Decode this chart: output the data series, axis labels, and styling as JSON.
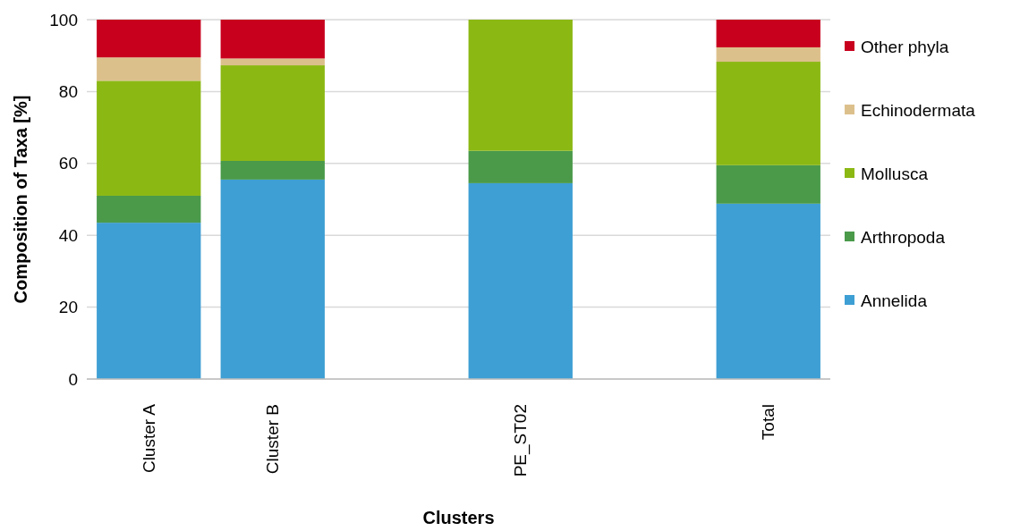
{
  "chart_data": {
    "type": "bar",
    "stacked": true,
    "xlabel": "Clusters",
    "ylabel": "Composition of Taxa [%]",
    "categories": [
      "Cluster A",
      "Cluster B",
      null,
      "PE_ST02",
      null,
      "Total"
    ],
    "ylim": [
      0,
      100
    ],
    "yticks": [
      0,
      20,
      40,
      60,
      80,
      100
    ],
    "grid": "y",
    "legend": "right",
    "series": [
      {
        "name": "Annelida",
        "color": "#3e9fd4",
        "values": [
          43.5,
          55.5,
          null,
          54.5,
          null,
          48.8
        ]
      },
      {
        "name": "Arthropoda",
        "color": "#4a9a4a",
        "values": [
          7.5,
          5.2,
          null,
          9,
          null,
          10.7
        ]
      },
      {
        "name": "Mollusca",
        "color": "#8cb814",
        "values": [
          32,
          26.6,
          null,
          36.5,
          null,
          28.8
        ]
      },
      {
        "name": "Echinodermata",
        "color": "#dcc08c",
        "values": [
          6.5,
          1.9,
          null,
          0,
          null,
          4
        ]
      },
      {
        "name": "Other phyla",
        "color": "#c8001e",
        "values": [
          10.5,
          10.8,
          null,
          0,
          null,
          7.7
        ]
      }
    ]
  }
}
